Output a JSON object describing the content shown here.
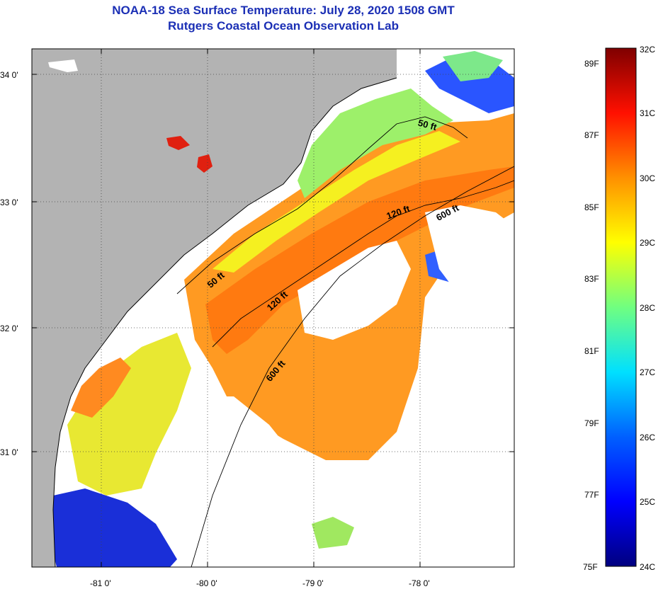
{
  "header": {
    "title": "NOAA-18 Sea Surface Temperature:  July 28, 2020 1508 GMT",
    "subtitle": "Rutgers Coastal Ocean Observation Lab"
  },
  "map": {
    "lat_labels": [
      "34 0'",
      "33 0'",
      "32 0'",
      "31 0'"
    ],
    "lon_labels": [
      "-81 0'",
      "-80 0'",
      "-79 0'",
      "-78 0'"
    ],
    "depth_contours": [
      "50 ft",
      "120 ft",
      "600 ft",
      "50 ft",
      "120 ft",
      "600 ft"
    ]
  },
  "colorbar": {
    "celsius_labels": [
      "32C",
      "31C",
      "30C",
      "29C",
      "28C",
      "27C",
      "26C",
      "25C",
      "24C"
    ],
    "fahrenheit_labels": [
      "89F",
      "87F",
      "85F",
      "83F",
      "81F",
      "79F",
      "77F",
      "75F"
    ],
    "range_c": [
      24,
      32
    ],
    "colors": [
      "#00007f",
      "#0000ff",
      "#007fff",
      "#00ffff",
      "#7fff7f",
      "#ffff00",
      "#ff7f00",
      "#ff0000",
      "#7f0000"
    ]
  },
  "colors": {
    "title": "#1b2fb5",
    "land": "#b3b3b3",
    "cloud": "#ffffff"
  }
}
